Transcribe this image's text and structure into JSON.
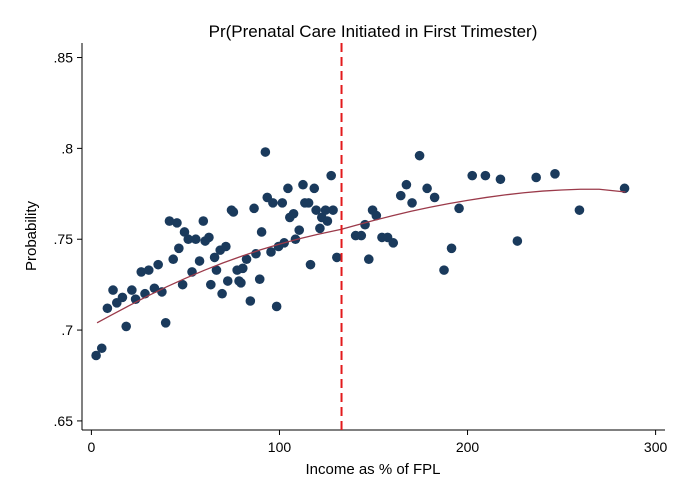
{
  "chart_data": {
    "type": "scatter",
    "title": "Pr(Prenatal Care Initiated in First Trimester)",
    "xlabel": "Income as % of FPL",
    "ylabel": "Probability",
    "xlim": [
      -5,
      305
    ],
    "ylim": [
      0.645,
      0.858
    ],
    "xticks": [
      0,
      100,
      200,
      300
    ],
    "xtick_labels": [
      "0",
      "100",
      "200",
      "300"
    ],
    "yticks": [
      0.65,
      0.7,
      0.75,
      0.8,
      0.85
    ],
    "ytick_labels": [
      ".65",
      ".7",
      ".75",
      ".8",
      ".85"
    ],
    "grid": false,
    "legend": "none",
    "colors": {
      "points": "#1a3a5c",
      "fit_line": "#9b3a4a",
      "cutoff_line": "#e31a1c"
    },
    "cutoff_x": 133,
    "series": [
      {
        "type": "scatter",
        "points": [
          [
            2.5,
            0.686
          ],
          [
            5.5,
            0.69
          ],
          [
            8.5,
            0.712
          ],
          [
            11.5,
            0.722
          ],
          [
            13.5,
            0.715
          ],
          [
            16.5,
            0.718
          ],
          [
            18.5,
            0.702
          ],
          [
            21.5,
            0.722
          ],
          [
            23.5,
            0.717
          ],
          [
            26.5,
            0.732
          ],
          [
            28.5,
            0.72
          ],
          [
            30.5,
            0.733
          ],
          [
            33.5,
            0.723
          ],
          [
            35.5,
            0.736
          ],
          [
            37.5,
            0.721
          ],
          [
            39.5,
            0.704
          ],
          [
            41.5,
            0.76
          ],
          [
            43.5,
            0.739
          ],
          [
            45.5,
            0.759
          ],
          [
            46.5,
            0.745
          ],
          [
            48.5,
            0.725
          ],
          [
            49.5,
            0.754
          ],
          [
            51.5,
            0.75
          ],
          [
            53.5,
            0.732
          ],
          [
            55.5,
            0.75
          ],
          [
            57.5,
            0.738
          ],
          [
            59.5,
            0.76
          ],
          [
            60.5,
            0.749
          ],
          [
            62.5,
            0.751
          ],
          [
            63.5,
            0.725
          ],
          [
            65.5,
            0.74
          ],
          [
            66.5,
            0.733
          ],
          [
            68.5,
            0.744
          ],
          [
            69.5,
            0.72
          ],
          [
            71.5,
            0.746
          ],
          [
            72.5,
            0.727
          ],
          [
            74.5,
            0.766
          ],
          [
            75.5,
            0.765
          ],
          [
            77.5,
            0.733
          ],
          [
            78.5,
            0.727
          ],
          [
            79.5,
            0.726
          ],
          [
            80.5,
            0.734
          ],
          [
            82.5,
            0.739
          ],
          [
            84.5,
            0.716
          ],
          [
            86.5,
            0.767
          ],
          [
            87.5,
            0.742
          ],
          [
            89.5,
            0.728
          ],
          [
            90.5,
            0.754
          ],
          [
            92.5,
            0.798
          ],
          [
            93.5,
            0.773
          ],
          [
            95.5,
            0.743
          ],
          [
            96.5,
            0.77
          ],
          [
            98.5,
            0.713
          ],
          [
            99.5,
            0.746
          ],
          [
            101.5,
            0.77
          ],
          [
            102.5,
            0.748
          ],
          [
            104.5,
            0.778
          ],
          [
            105.5,
            0.762
          ],
          [
            107.5,
            0.764
          ],
          [
            108.5,
            0.75
          ],
          [
            110.5,
            0.755
          ],
          [
            112.5,
            0.78
          ],
          [
            113.5,
            0.77
          ],
          [
            115.5,
            0.77
          ],
          [
            116.5,
            0.736
          ],
          [
            118.5,
            0.778
          ],
          [
            119.5,
            0.766
          ],
          [
            121.5,
            0.756
          ],
          [
            122.5,
            0.762
          ],
          [
            124.5,
            0.766
          ],
          [
            125.5,
            0.76
          ],
          [
            127.5,
            0.785
          ],
          [
            128.5,
            0.766
          ],
          [
            130.5,
            0.74
          ],
          [
            140.5,
            0.752
          ],
          [
            143.5,
            0.752
          ],
          [
            145.5,
            0.758
          ],
          [
            147.5,
            0.739
          ],
          [
            149.5,
            0.766
          ],
          [
            151.5,
            0.763
          ],
          [
            154.5,
            0.751
          ],
          [
            157.5,
            0.751
          ],
          [
            160.5,
            0.748
          ],
          [
            164.5,
            0.774
          ],
          [
            167.5,
            0.78
          ],
          [
            170.5,
            0.77
          ],
          [
            174.5,
            0.796
          ],
          [
            178.5,
            0.778
          ],
          [
            182.5,
            0.773
          ],
          [
            187.5,
            0.733
          ],
          [
            191.5,
            0.745
          ],
          [
            195.5,
            0.767
          ],
          [
            202.5,
            0.785
          ],
          [
            209.5,
            0.785
          ],
          [
            217.5,
            0.783
          ],
          [
            226.5,
            0.749
          ],
          [
            236.5,
            0.784
          ],
          [
            246.5,
            0.786
          ],
          [
            259.5,
            0.766
          ],
          [
            283.5,
            0.778
          ]
        ]
      },
      {
        "type": "line",
        "x": [
          3,
          10,
          20,
          30,
          40,
          50,
          60,
          70,
          80,
          90,
          100,
          110,
          120,
          133
        ],
        "y": [
          0.704,
          0.7079,
          0.7134,
          0.7188,
          0.7238,
          0.7285,
          0.7329,
          0.737,
          0.7407,
          0.7442,
          0.7473,
          0.7501,
          0.7526,
          0.7555
        ]
      },
      {
        "type": "line",
        "x": [
          133,
          140,
          150,
          160,
          170,
          180,
          190,
          200,
          210,
          220,
          230,
          240,
          250,
          260,
          270,
          284
        ],
        "y": [
          0.7555,
          0.7575,
          0.7603,
          0.7629,
          0.7654,
          0.7676,
          0.7696,
          0.7714,
          0.773,
          0.7744,
          0.7756,
          0.7765,
          0.7771,
          0.7775,
          0.7775,
          0.776
        ]
      }
    ]
  }
}
